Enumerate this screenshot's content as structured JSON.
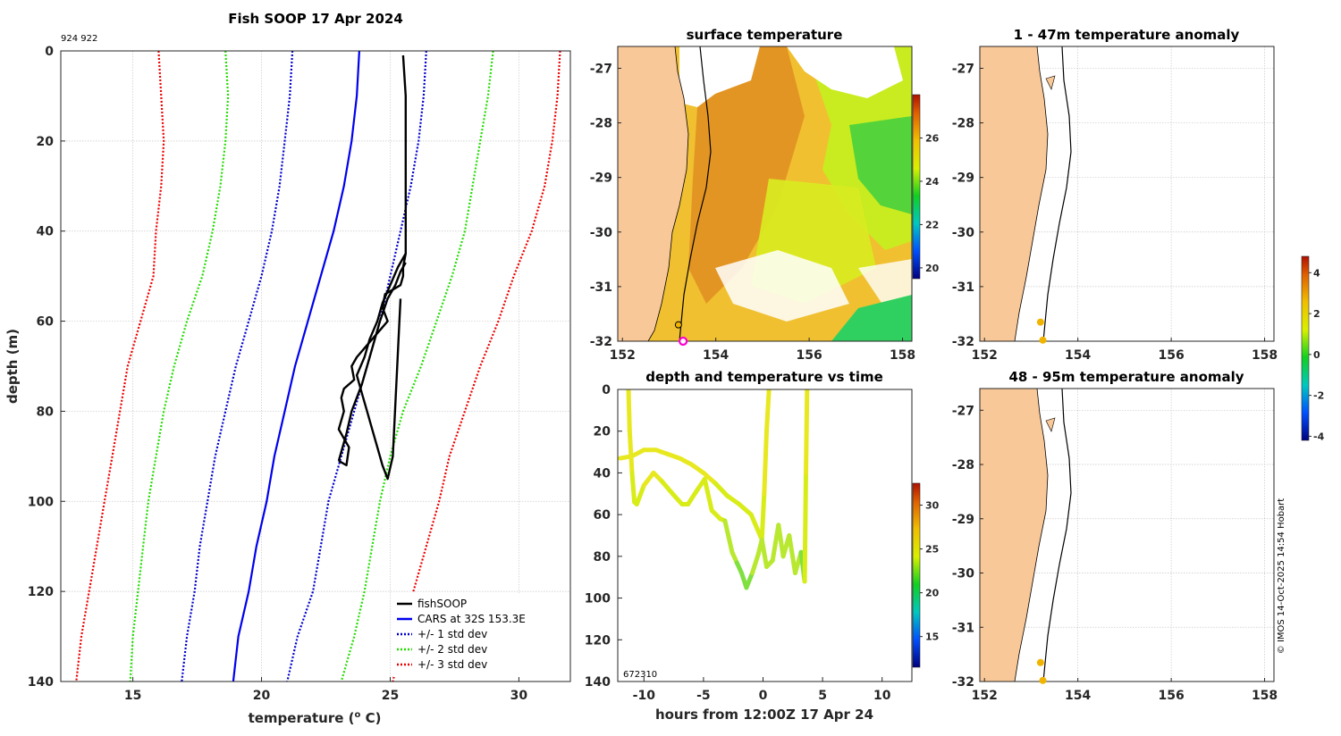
{
  "header": {
    "title": "Fish SOOP 17 Apr 2024",
    "id_label": "924 922",
    "credit": "© IMOS 14-Oct-2025 14:54 Hobart"
  },
  "colors": {
    "land": "#f9c898",
    "fishsoop": "#000000",
    "cars": "#0000ee",
    "std1": "#0000cc",
    "std2": "#22dd00",
    "std3": "#ee0000",
    "track_point": "#f0b400",
    "launch_marker": "#ff00cc"
  },
  "profile": {
    "xlabel": "temperature (o C)",
    "xlabel_main": "temperature (",
    "xlabel_sup": "o",
    "xlabel_tail": " C)",
    "ylabel": "depth (m)",
    "x_ticks": [
      "15",
      "20",
      "25",
      "30"
    ],
    "y_ticks": [
      "0",
      "20",
      "40",
      "60",
      "80",
      "100",
      "120",
      "140"
    ],
    "legend": [
      "fishSOOP",
      "CARS at 32S 153.3E",
      "+/- 1 std dev",
      "+/- 2 std dev",
      "+/- 3 std dev"
    ]
  },
  "sst_map": {
    "title": "surface temperature",
    "x_ticks": [
      "152",
      "154",
      "156",
      "158"
    ],
    "y_ticks": [
      "-27",
      "-28",
      "-29",
      "-30",
      "-31",
      "-32"
    ],
    "colorbar_ticks": [
      "26",
      "24",
      "22",
      "20"
    ]
  },
  "anom1": {
    "title": "1 - 47m temperature anomaly",
    "x_ticks": [
      "152",
      "154",
      "156",
      "158"
    ],
    "y_ticks": [
      "-27",
      "-28",
      "-29",
      "-30",
      "-31",
      "-32"
    ]
  },
  "anom2": {
    "title": "48 - 95m temperature anomaly",
    "x_ticks": [
      "152",
      "154",
      "156",
      "158"
    ],
    "y_ticks": [
      "-27",
      "-28",
      "-29",
      "-30",
      "-31",
      "-32"
    ]
  },
  "anomaly_colorbar": {
    "ticks": [
      "4",
      "2",
      "0",
      "-2",
      "-4"
    ]
  },
  "timeseries": {
    "title": "depth and temperature vs time",
    "xlabel": "hours from 12:00Z 17 Apr 24",
    "x_ticks": [
      "-10",
      "-5",
      "0",
      "5",
      "10"
    ],
    "y_ticks": [
      "0",
      "20",
      "40",
      "60",
      "80",
      "100",
      "120",
      "140"
    ],
    "id_label": "672310",
    "colorbar_ticks": [
      "30",
      "25",
      "20",
      "15"
    ]
  },
  "chart_data": [
    {
      "type": "line",
      "title": "Fish SOOP 17 Apr 2024",
      "xlabel": "temperature (o C)",
      "ylabel": "depth (m)",
      "xlim": [
        12.2,
        32
      ],
      "ylim": [
        140,
        0
      ],
      "grid": true,
      "legend_position": "bottom-right",
      "depth": [
        0,
        10,
        20,
        30,
        40,
        50,
        60,
        70,
        80,
        90,
        100,
        110,
        120,
        130,
        140
      ],
      "series": [
        {
          "name": "CARS at 32S 153.3E",
          "style": "solid",
          "color": "#0000ee",
          "temp": [
            23.8,
            23.7,
            23.5,
            23.2,
            22.8,
            22.3,
            21.8,
            21.3,
            20.9,
            20.5,
            20.2,
            19.8,
            19.5,
            19.1,
            18.9
          ]
        },
        {
          "name": "+/- 1 std dev",
          "style": "dotted",
          "color": "#0000cc",
          "temp": [
            21.2,
            21.1,
            20.9,
            20.7,
            20.4,
            20.0,
            19.5,
            19.0,
            18.6,
            18.2,
            17.9,
            17.6,
            17.4,
            17.1,
            16.9
          ]
        },
        {
          "name": "+/- 1 std dev",
          "style": "dotted",
          "color": "#0000cc",
          "temp": [
            26.4,
            26.3,
            26.1,
            25.8,
            25.4,
            25.0,
            24.6,
            24.1,
            23.6,
            23.1,
            22.6,
            22.3,
            22.0,
            21.4,
            21.0
          ]
        },
        {
          "name": "+/- 2 std dev",
          "style": "dotted",
          "color": "#22dd00",
          "temp": [
            18.6,
            18.7,
            18.6,
            18.4,
            18.1,
            17.7,
            17.1,
            16.6,
            16.2,
            15.9,
            15.6,
            15.4,
            15.2,
            15.0,
            14.9
          ]
        },
        {
          "name": "+/- 2 std dev",
          "style": "dotted",
          "color": "#22dd00",
          "temp": [
            29.0,
            28.8,
            28.5,
            28.2,
            27.9,
            27.4,
            26.8,
            26.2,
            25.5,
            25.0,
            24.6,
            24.3,
            24.0,
            23.6,
            23.1
          ]
        },
        {
          "name": "+/- 3 std dev",
          "style": "dotted",
          "color": "#ee0000",
          "temp": [
            16.0,
            16.1,
            16.2,
            16.1,
            15.9,
            15.8,
            15.3,
            14.8,
            14.5,
            14.2,
            13.9,
            13.6,
            13.3,
            13.0,
            12.8
          ]
        },
        {
          "name": "+/- 3 std dev",
          "style": "dotted",
          "color": "#ee0000",
          "temp": [
            31.6,
            31.5,
            31.3,
            31.0,
            30.5,
            29.8,
            29.2,
            28.5,
            27.9,
            27.3,
            26.9,
            26.4,
            25.9,
            25.5,
            25.1
          ]
        }
      ],
      "fishsoop": [
        {
          "temp": [
            25.5,
            25.6,
            25.6,
            25.6,
            25.6,
            25.6,
            25.5,
            25.5,
            25.4,
            25.1,
            24.8,
            24.7,
            24.9,
            24.6,
            24.3,
            24.0,
            23.7,
            23.5,
            23.6,
            23.2,
            23.1,
            23.2,
            23.0,
            23.4,
            23.3,
            23.0
          ],
          "depth": [
            1,
            10,
            20,
            30,
            40,
            45,
            48,
            50,
            52,
            53,
            54,
            57,
            60,
            62,
            64,
            66,
            68,
            70,
            73,
            75,
            77,
            80,
            84,
            88,
            92,
            91
          ]
        },
        {
          "temp": [
            23.0,
            23.3,
            23.5,
            23.9,
            24.2,
            24.6,
            24.9,
            25.2,
            25.4,
            25.6
          ],
          "depth": [
            91,
            85,
            80,
            74,
            68,
            60,
            55,
            52,
            49,
            47
          ]
        },
        {
          "temp": [
            25.6,
            25.3,
            25.0,
            24.7,
            24.5,
            24.2,
            24.0,
            23.7,
            23.9,
            24.1,
            24.3,
            24.5,
            24.7,
            24.9,
            25.1,
            25.4
          ],
          "depth": [
            45,
            48,
            52,
            56,
            60,
            64,
            68,
            72,
            76,
            80,
            84,
            88,
            92,
            95,
            90,
            55
          ]
        }
      ]
    },
    {
      "type": "heatmap",
      "title": "surface temperature",
      "xlim": [
        151.9,
        158.2
      ],
      "ylim": [
        -32,
        -26.6
      ],
      "colorbar_range": [
        19.5,
        28
      ],
      "colorbar_ticks": [
        20,
        22,
        24,
        26
      ],
      "track": [
        {
          "lon": 153.2,
          "lat": -31.7
        },
        {
          "lon": 153.3,
          "lat": -32.0
        }
      ]
    },
    {
      "type": "scatter",
      "title": "1 - 47m temperature anomaly",
      "xlim": [
        151.9,
        158.2
      ],
      "ylim": [
        -32,
        -26.6
      ],
      "points": [
        {
          "lon": 153.2,
          "lat": -31.65
        },
        {
          "lon": 153.25,
          "lat": -31.98
        }
      ]
    },
    {
      "type": "scatter",
      "title": "48 - 95m temperature anomaly",
      "xlim": [
        151.9,
        158.2
      ],
      "ylim": [
        -32,
        -26.6
      ],
      "points": [
        {
          "lon": 153.2,
          "lat": -31.65
        },
        {
          "lon": 153.25,
          "lat": -31.98
        }
      ],
      "colorbar_range": [
        -4.2,
        4.8
      ],
      "colorbar_ticks": [
        -4,
        -2,
        0,
        2,
        4
      ]
    },
    {
      "type": "scatter",
      "title": "depth and temperature vs time",
      "xlabel": "hours from 12:00Z 17 Apr 24",
      "xlim": [
        -12.2,
        12.5
      ],
      "ylim": [
        140,
        0
      ],
      "colorbar_range": [
        11.5,
        32.5
      ],
      "colorbar_ticks": [
        15,
        20,
        25,
        30
      ],
      "segments": [
        {
          "hours": [
            -11.3,
            -11.2,
            -11.0,
            -10.8,
            -10.6
          ],
          "depth": [
            0,
            20,
            40,
            54,
            55
          ]
        },
        {
          "hours": [
            -10.6,
            -10.0,
            -9.2,
            -8.5,
            -7.6,
            -6.8,
            -6.3,
            -5.5,
            -4.9,
            -4.3,
            -3.6,
            -3.2,
            -2.6,
            -2.2,
            -1.8,
            -1.4,
            -0.9,
            -0.4,
            -0.1,
            0.1,
            0.3,
            0.5
          ],
          "depth": [
            55,
            46,
            40,
            44,
            50,
            55,
            55,
            48,
            43,
            58,
            62,
            63,
            78,
            83,
            88,
            95,
            88,
            79,
            72,
            50,
            20,
            0
          ]
        },
        {
          "hours": [
            -12.0,
            -11.0,
            -10.0,
            -9.0,
            -8.0,
            -7.0,
            -6.0,
            -5.0,
            -4.0,
            -3.0,
            -2.0,
            -1.0,
            -0.1
          ],
          "depth": [
            33,
            32,
            29,
            29,
            31,
            33,
            36,
            40,
            45,
            51,
            55,
            60,
            72
          ]
        },
        {
          "hours": [
            -0.1,
            0.3,
            0.8,
            1.3,
            1.7,
            2.2,
            2.7,
            3.2,
            3.5,
            3.6,
            3.7
          ],
          "depth": [
            72,
            85,
            82,
            65,
            80,
            70,
            88,
            78,
            92,
            40,
            0
          ]
        }
      ]
    }
  ]
}
